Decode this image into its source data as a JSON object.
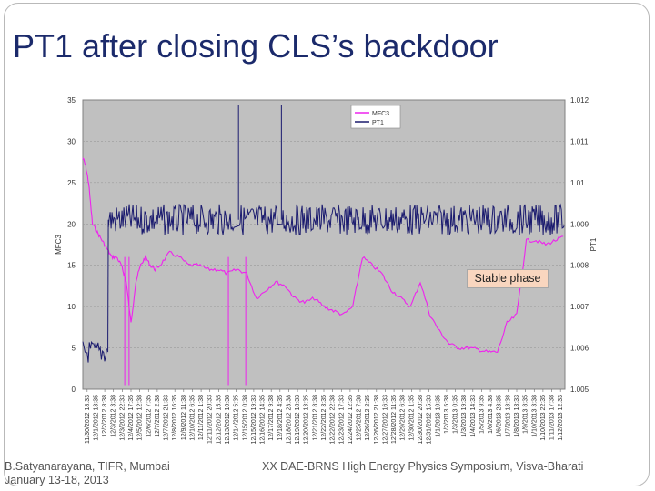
{
  "slide": {
    "title": "PT1 after closing CLS’s backdoor",
    "footer_author": "B.Satyanarayana, TIFR, Mumbai",
    "footer_date": "January 13-18, 2013",
    "footer_event": "XX DAE-BRNS High Energy Physics Symposium, Visva-Bharati"
  },
  "chart_data": {
    "type": "line",
    "title": "",
    "ylabel_left": "MFC3",
    "ylabel_right": "PT1",
    "ylim_left": [
      0,
      35
    ],
    "yticks_left": [
      "0",
      "5",
      "10",
      "15",
      "20",
      "25",
      "30",
      "35"
    ],
    "ylim_right": [
      1.005,
      1.012
    ],
    "yticks_right": [
      "1.005",
      "1.006",
      "1.007",
      "1.008",
      "1.009",
      "1.01",
      "1.011",
      "1.012"
    ],
    "xticks": [
      "11/30/2012 18:33",
      "12/1/2012 13:35",
      "12/2/2012 8:38",
      "12/3/2012 3:38",
      "12/3/2012 22:33",
      "12/4/2012 17:35",
      "12/5/2012 12:38",
      "12/6/2012 7:35",
      "12/7/2012 2:38",
      "12/7/2012 21:33",
      "12/8/2012 16:35",
      "12/9/2012 11:38",
      "12/10/2012 6:35",
      "12/11/2012 1:38",
      "12/11/2012 20:33",
      "12/12/2012 15:35",
      "12/13/2012 10:38",
      "12/14/2012 5:35",
      "12/15/2012 0:38",
      "12/15/2012 19:33",
      "12/16/2012 14:35",
      "12/17/2012 9:38",
      "12/18/2012 4:35",
      "12/18/2012 23:38",
      "12/19/2012 18:33",
      "12/20/2012 13:35",
      "12/21/2012 8:38",
      "12/22/2012 3:35",
      "12/22/2012 22:38",
      "12/23/2012 17:33",
      "12/24/2012 12:35",
      "12/25/2012 7:38",
      "12/26/2012 2:35",
      "12/26/2012 21:38",
      "12/27/2012 16:33",
      "12/28/2012 11:35",
      "12/29/2012 6:38",
      "12/30/2012 1:35",
      "12/30/2012 20:38",
      "12/31/2012 15:33",
      "1/1/2013 10:35",
      "1/2/2013 5:38",
      "1/3/2013 0:35",
      "1/3/2013 19:38",
      "1/4/2013 14:33",
      "1/5/2013 9:35",
      "1/6/2013 4:38",
      "1/6/2013 23:35",
      "1/7/2013 18:38",
      "1/8/2013 13:33",
      "1/9/2013 8:35",
      "1/10/2013 3:38",
      "1/10/2013 22:35",
      "1/11/2013 17:38",
      "1/12/2013 12:33"
    ],
    "legend": [
      "MFC3",
      "PT1"
    ],
    "legend_position": "top-right",
    "grid": true,
    "plot_background": "#c0c0c0",
    "annotation": "Stable phase",
    "series": [
      {
        "name": "MFC3",
        "axis": "left",
        "color": "#ee22ee",
        "x": [
          0,
          0.6,
          1.2,
          2,
          3,
          4,
          5,
          6,
          7,
          8,
          8.5,
          9,
          10,
          11,
          12,
          13,
          14,
          15,
          16,
          18,
          20,
          22,
          24,
          26,
          28,
          30,
          32,
          34,
          36,
          38,
          40,
          42,
          44,
          46,
          48,
          50,
          52,
          54,
          56,
          58,
          60,
          62,
          64,
          66,
          68,
          70,
          72,
          74,
          76,
          78,
          80,
          82,
          84,
          86,
          88,
          90,
          92,
          94,
          96,
          98,
          100
        ],
        "y": [
          28,
          27,
          25,
          20,
          19,
          18,
          17,
          16,
          16,
          15,
          14,
          13,
          8,
          13,
          15,
          16,
          15,
          14.5,
          15,
          16.5,
          16,
          15,
          15,
          14.5,
          14.5,
          14,
          14.5,
          14,
          11,
          12,
          13,
          12.5,
          11,
          10.5,
          11,
          10,
          9.5,
          9,
          10,
          16,
          15,
          14,
          12,
          11,
          10,
          13,
          9,
          7,
          5.5,
          5,
          5,
          4.8,
          4.5,
          4.5,
          8,
          9,
          18,
          18,
          17.5,
          18,
          18.5
        ]
      },
      {
        "name": "PT1",
        "axis": "right",
        "color": "#1a1a6e",
        "x": [
          0,
          2,
          3,
          4,
          5,
          6,
          8,
          10,
          15,
          20,
          25,
          30,
          32,
          33,
          35,
          40,
          45,
          50,
          55,
          60,
          65,
          70,
          75,
          80,
          85,
          90,
          95,
          100
        ],
        "y": [
          1.0059,
          1.0059,
          1.0059,
          1.0059,
          1.0059,
          1.0091,
          1.0091,
          1.0091,
          1.0091,
          1.0091,
          1.0091,
          1.0091,
          1.0091,
          1.0091,
          1.0091,
          1.0091,
          1.0091,
          1.0091,
          1.0091,
          1.0091,
          1.0091,
          1.0091,
          1.0091,
          1.0091,
          1.0091,
          1.0091,
          1.0091,
          1.0091
        ]
      }
    ]
  }
}
